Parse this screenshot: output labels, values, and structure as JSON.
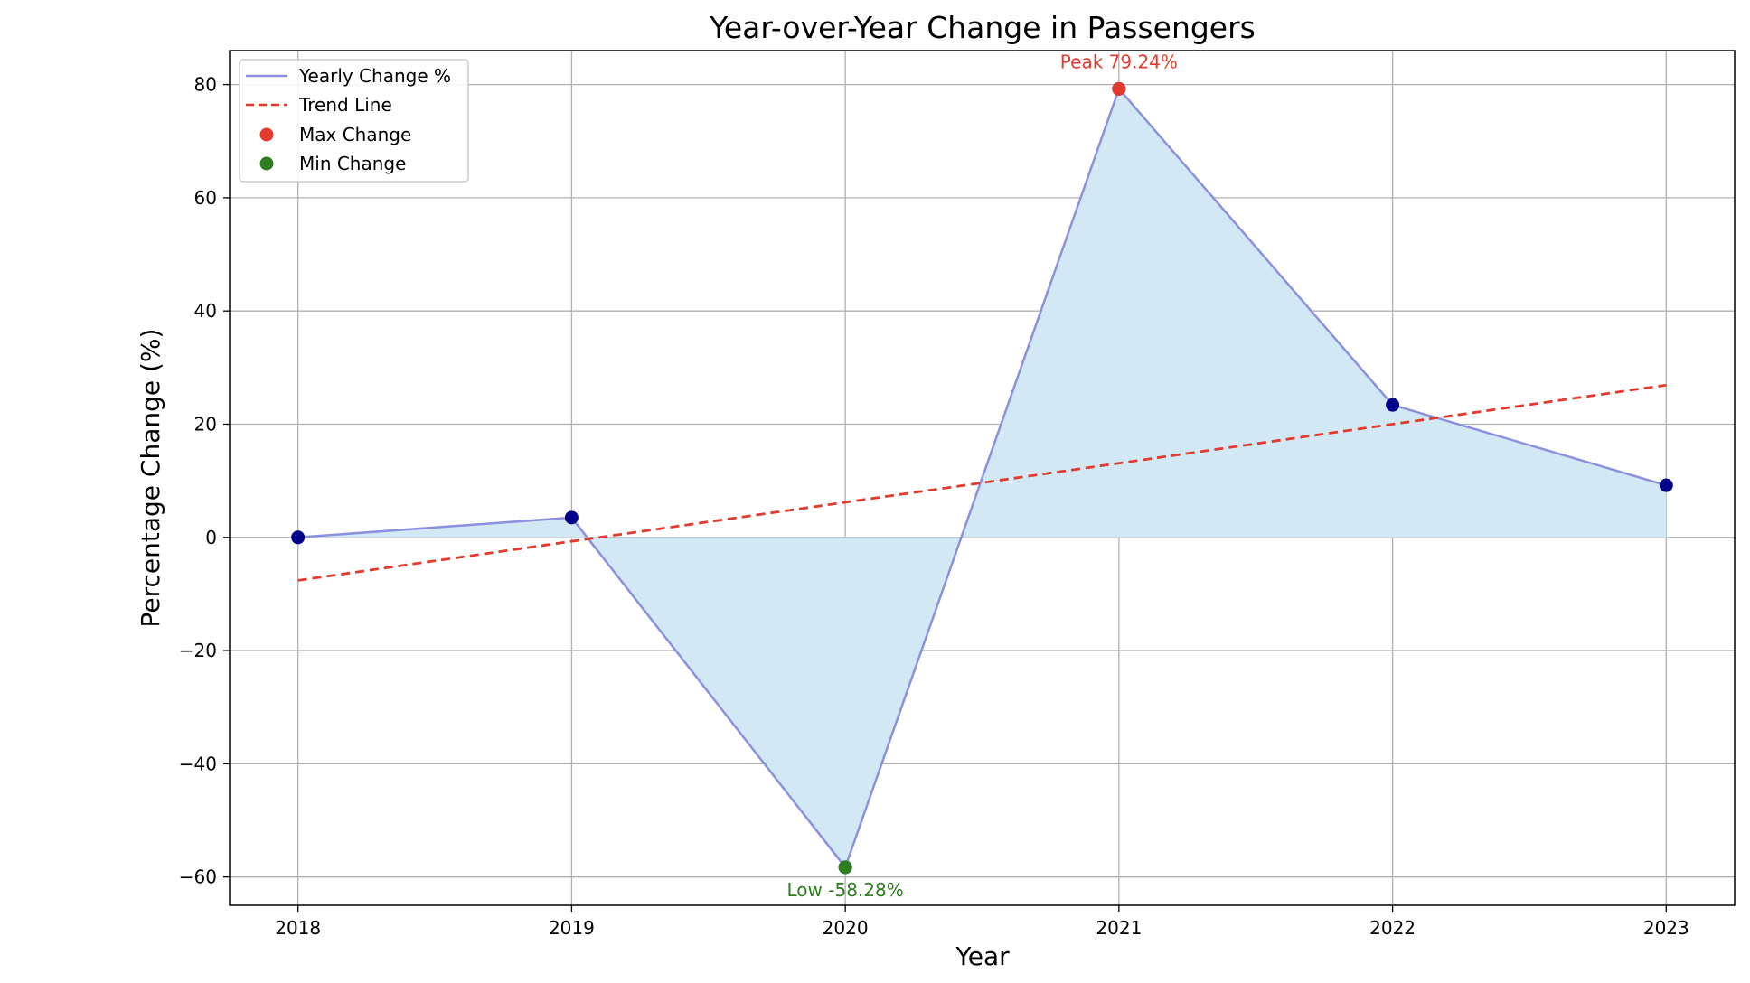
{
  "chart_data": {
    "type": "line",
    "title": "Year-over-Year Change in Passengers",
    "xlabel": "Year",
    "ylabel": "Percentage Change (%)",
    "categories": [
      "2018",
      "2019",
      "2020",
      "2021",
      "2022",
      "2023"
    ],
    "x": [
      2018,
      2019,
      2020,
      2021,
      2022,
      2023
    ],
    "xlim": [
      2017.75,
      2023.25
    ],
    "ylim": [
      -65,
      86
    ],
    "yticks": [
      -60,
      -40,
      -20,
      0,
      20,
      40,
      60,
      80
    ],
    "ytick_labels": [
      "−60",
      "−40",
      "−20",
      "0",
      "20",
      "40",
      "60",
      "80"
    ],
    "grid": true,
    "legend_position": "top-left",
    "series": [
      {
        "name": "Yearly Change %",
        "values": [
          0.0,
          3.5,
          -58.28,
          79.24,
          23.4,
          9.2
        ],
        "color": "#8c90dd",
        "marker_color": "#00008b",
        "fill_color": "#d3e8f5"
      },
      {
        "name": "Trend Line",
        "style": "dashed",
        "values": [
          -7.6,
          -0.7,
          6.2,
          13.1,
          20.0,
          26.9
        ],
        "color": "#e23b2e"
      }
    ],
    "max_point": {
      "label": "Max Change",
      "x": 2021,
      "y": 79.24,
      "color": "#e23b2e",
      "annotation": "Peak 79.24%"
    },
    "min_point": {
      "label": "Min Change",
      "x": 2020,
      "y": -58.28,
      "color": "#2e7d1e",
      "annotation": "Low -58.28%"
    }
  }
}
